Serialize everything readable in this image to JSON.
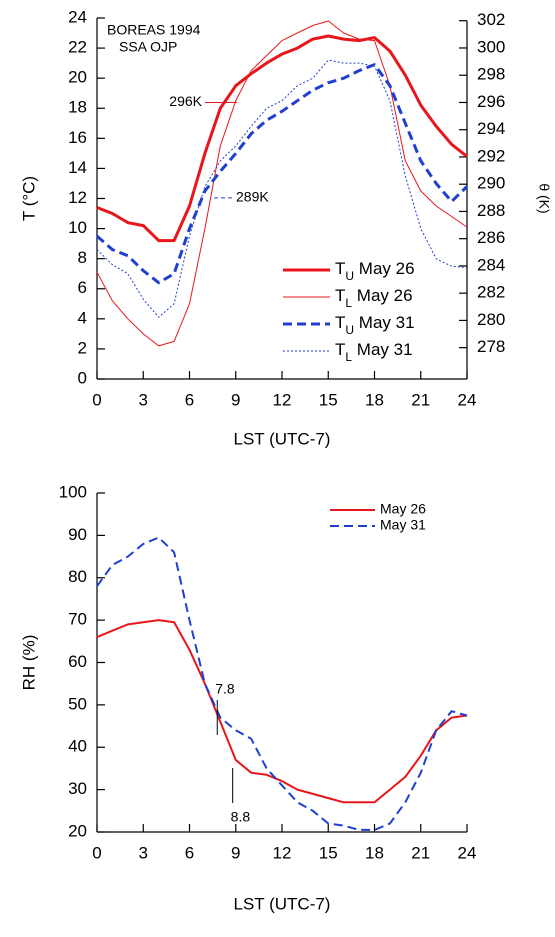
{
  "chart_data": [
    {
      "type": "line",
      "annotations": [
        {
          "text": "BOREAS 1994"
        },
        {
          "text": "SSA OJP"
        },
        {
          "text": "296K",
          "y2": 296
        },
        {
          "text": "289K",
          "y2": 289
        }
      ],
      "x_label": "LST (UTC-7)",
      "y_label": "T (°C)",
      "y2_label": "θ (K)",
      "x": [
        0,
        1,
        2,
        3,
        4,
        5,
        6,
        7,
        8,
        9,
        10,
        11,
        12,
        13,
        14,
        15,
        16,
        17,
        18,
        19,
        20,
        21,
        22,
        23,
        24
      ],
      "series": [
        {
          "name": "TU May 26",
          "color": "#e8161b",
          "line_width": 3,
          "dash": "solid",
          "values": [
            11.4,
            11,
            10.4,
            10.2,
            9.2,
            9.2,
            11.5,
            15,
            18,
            19.5,
            20.3,
            21,
            21.6,
            22,
            22.6,
            22.8,
            22.6,
            22.5,
            22.7,
            21.8,
            20.2,
            18.2,
            16.8,
            15.6,
            14.8
          ]
        },
        {
          "name": "TL May 26",
          "color": "#e8161b",
          "line_width": 1,
          "dash": "solid",
          "values": [
            7.1,
            5.2,
            4,
            3,
            2.2,
            2.5,
            5,
            10,
            15.5,
            18.5,
            20.5,
            21.5,
            22.5,
            23,
            23.5,
            23.8,
            23,
            22.6,
            22.5,
            19.5,
            14.5,
            12.5,
            11.5,
            10.8,
            10.1
          ]
        },
        {
          "name": "TU May 31",
          "color": "#1f3fd0",
          "line_width": 3,
          "dash": "dashed",
          "values": [
            9.5,
            8.6,
            8.2,
            7.2,
            6.4,
            7,
            10,
            12.5,
            13.8,
            15,
            16.3,
            17.2,
            17.8,
            18.5,
            19.2,
            19.7,
            20,
            20.5,
            20.9,
            19.5,
            17,
            14.5,
            13,
            11.8,
            12.8
          ]
        },
        {
          "name": "TL May 31",
          "color": "#1f3fd0",
          "line_width": 1,
          "dash": "dotted",
          "values": [
            8.6,
            7.6,
            7,
            5.3,
            4.1,
            5,
            9.5,
            12.8,
            14.5,
            15.5,
            16.8,
            18,
            18.5,
            19.5,
            20,
            21.2,
            21,
            21,
            20.8,
            18.5,
            13.5,
            10,
            8,
            7.5,
            7.4
          ]
        }
      ],
      "xlim": [
        0,
        24
      ],
      "xticks": [
        0,
        3,
        6,
        9,
        12,
        15,
        18,
        21,
        24
      ],
      "ylim": [
        0,
        24
      ],
      "yticks": [
        0,
        2,
        4,
        6,
        8,
        10,
        12,
        14,
        16,
        18,
        20,
        22,
        24
      ],
      "y2lim": [
        275.7,
        302.2
      ],
      "y2ticks": [
        278,
        280,
        282,
        284,
        286,
        288,
        290,
        292,
        294,
        296,
        298,
        300,
        302
      ]
    },
    {
      "type": "line",
      "annotations": [
        {
          "x": 7.8
        },
        {
          "x": 8.8
        }
      ],
      "x_label": "LST (UTC-7)",
      "y_label": "RH (%)",
      "x": [
        0,
        1,
        2,
        3,
        4,
        5,
        6,
        7,
        8,
        9,
        10,
        11,
        12,
        13,
        14,
        15,
        16,
        17,
        18,
        19,
        20,
        21,
        22,
        23,
        24
      ],
      "series": [
        {
          "name": "May 26",
          "color": "#e8161b",
          "line_width": 2,
          "dash": "solid",
          "values": [
            66,
            67.5,
            69,
            69.5,
            70,
            69.5,
            63,
            55,
            46,
            37,
            34,
            33.5,
            32,
            30,
            29,
            28,
            27,
            27,
            27,
            30,
            33,
            38,
            44,
            47,
            47.5
          ]
        },
        {
          "name": "May 31",
          "color": "#1f3fd0",
          "line_width": 2,
          "dash": "dashed",
          "values": [
            78,
            83,
            85,
            88,
            89.5,
            86,
            70,
            55,
            47,
            44,
            42,
            35,
            31,
            27,
            25,
            22,
            21.5,
            20.5,
            20.5,
            22,
            27,
            34,
            44,
            48.5,
            47.5
          ]
        }
      ],
      "xlim": [
        0,
        24
      ],
      "xticks": [
        0,
        3,
        6,
        9,
        12,
        15,
        18,
        21,
        24
      ],
      "ylim": [
        20,
        100
      ],
      "yticks": [
        20,
        30,
        40,
        50,
        60,
        70,
        80,
        90,
        100
      ]
    }
  ]
}
